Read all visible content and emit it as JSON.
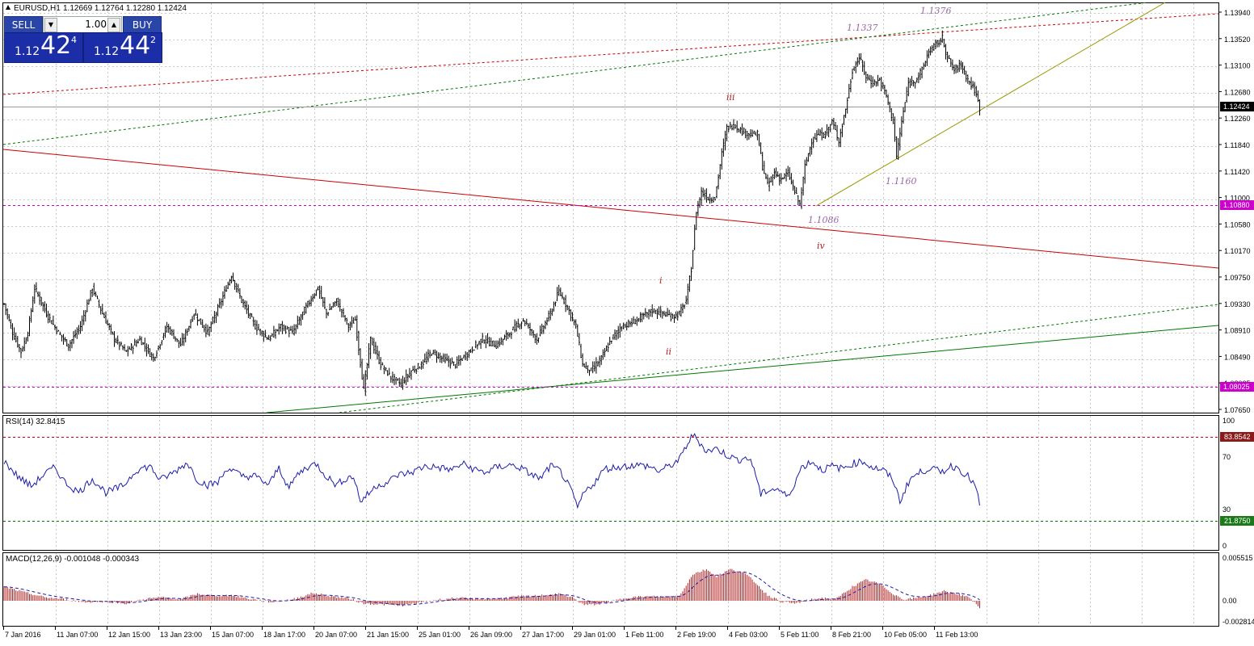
{
  "header": {
    "symbol": "EURUSD,H1",
    "ohlc": "1.12669 1.12764 1.12280 1.12424"
  },
  "trade_panel": {
    "sell_label": "SELL",
    "buy_label": "BUY",
    "volume": "1.00",
    "sell_prefix": "1.12",
    "sell_big": "42",
    "sell_sup": "4",
    "buy_prefix": "1.12",
    "buy_big": "44",
    "buy_sup": "2"
  },
  "colors": {
    "candle": "#000000",
    "rsi_line": "#1c1caa",
    "macd_hist": "#b22222",
    "macd_signal": "#1c1caa",
    "level_magenta": "#cc00cc",
    "trend_red": "#cc0000",
    "trend_green": "#007700",
    "trend_olive": "#999900",
    "wave_label": "#b22222",
    "price_label": "#9966aa",
    "grid": "#c0c0c0"
  },
  "price_axis": {
    "ticks": [
      "1.13940",
      "1.13520",
      "1.13100",
      "1.12680",
      "1.12260",
      "1.11840",
      "1.11420",
      "1.11000",
      "1.10580",
      "1.10170",
      "1.09750",
      "1.09330",
      "1.08910",
      "1.08490",
      "1.08025",
      "1.07650"
    ],
    "current_price": "1.12424",
    "levels": [
      "1.10880",
      "1.08025"
    ]
  },
  "time_axis": [
    "7 Jan 2016",
    "11 Jan 07:00",
    "12 Jan 15:00",
    "13 Jan 23:00",
    "15 Jan 07:00",
    "18 Jan 17:00",
    "20 Jan 07:00",
    "21 Jan 15:00",
    "25 Jan 01:00",
    "26 Jan 09:00",
    "27 Jan 17:00",
    "29 Jan 01:00",
    "1 Feb 11:00",
    "2 Feb 19:00",
    "4 Feb 03:00",
    "5 Feb 11:00",
    "8 Feb 21:00",
    "10 Feb 05:00",
    "11 Feb 13:00"
  ],
  "annotations": {
    "wave_labels": [
      "i",
      "ii",
      "iii",
      "iv"
    ],
    "price_labels": [
      "1.1337",
      "1.1376",
      "1.1160",
      "1.1086"
    ]
  },
  "rsi": {
    "title": "RSI(14) 32.8415",
    "ticks": [
      "100",
      "70",
      "30",
      "0"
    ],
    "upper_level": "83.8542",
    "lower_level": "21.8750"
  },
  "macd": {
    "title": "MACD(12,26,9) -0.001048 -0.000343",
    "ticks": [
      "0.005515",
      "0.00",
      "-0.002814"
    ]
  },
  "chart_data": {
    "type": "line",
    "title": "EURUSD,H1",
    "ylim": [
      1.0765,
      1.1405
    ],
    "anchors": [
      [
        0,
        1.0935
      ],
      [
        5,
        1.089
      ],
      [
        10,
        1.086
      ],
      [
        14,
        1.089
      ],
      [
        18,
        1.096
      ],
      [
        25,
        1.092
      ],
      [
        32,
        1.089
      ],
      [
        38,
        1.087
      ],
      [
        45,
        1.09
      ],
      [
        52,
        1.096
      ],
      [
        58,
        1.092
      ],
      [
        65,
        1.088
      ],
      [
        72,
        1.086
      ],
      [
        80,
        1.088
      ],
      [
        88,
        1.085
      ],
      [
        96,
        1.09
      ],
      [
        104,
        1.087
      ],
      [
        112,
        1.092
      ],
      [
        120,
        1.089
      ],
      [
        128,
        1.094
      ],
      [
        134,
        1.098
      ],
      [
        140,
        1.094
      ],
      [
        148,
        1.09
      ],
      [
        156,
        1.088
      ],
      [
        163,
        1.09
      ],
      [
        170,
        1.089
      ],
      [
        178,
        1.093
      ],
      [
        185,
        1.096
      ],
      [
        190,
        1.092
      ],
      [
        196,
        1.094
      ],
      [
        203,
        1.09
      ],
      [
        207,
        1.091
      ],
      [
        212,
        1.08
      ],
      [
        216,
        1.088
      ],
      [
        222,
        1.084
      ],
      [
        228,
        1.082
      ],
      [
        234,
        1.081
      ],
      [
        240,
        1.083
      ],
      [
        246,
        1.084
      ],
      [
        252,
        1.086
      ],
      [
        258,
        1.085
      ],
      [
        266,
        1.084
      ],
      [
        274,
        1.086
      ],
      [
        282,
        1.088
      ],
      [
        290,
        1.087
      ],
      [
        298,
        1.089
      ],
      [
        306,
        1.091
      ],
      [
        314,
        1.088
      ],
      [
        322,
        1.092
      ],
      [
        327,
        1.0955
      ],
      [
        332,
        1.093
      ],
      [
        337,
        1.09
      ],
      [
        341,
        1.084
      ],
      [
        346,
        1.083
      ],
      [
        352,
        1.085
      ],
      [
        358,
        1.088
      ],
      [
        364,
        1.09
      ],
      [
        370,
        1.0905
      ],
      [
        376,
        1.0915
      ],
      [
        382,
        1.0925
      ],
      [
        388,
        1.092
      ],
      [
        394,
        1.0915
      ],
      [
        398,
        1.092
      ],
      [
        402,
        1.094
      ],
      [
        405,
        1.099
      ],
      [
        408,
        1.108
      ],
      [
        411,
        1.111
      ],
      [
        415,
        1.11
      ],
      [
        419,
        1.11
      ],
      [
        423,
        1.117
      ],
      [
        426,
        1.121
      ],
      [
        430,
        1.1215
      ],
      [
        435,
        1.1205
      ],
      [
        440,
        1.12
      ],
      [
        444,
        1.12
      ],
      [
        447,
        1.115
      ],
      [
        450,
        1.112
      ],
      [
        454,
        1.114
      ],
      [
        458,
        1.113
      ],
      [
        462,
        1.114
      ],
      [
        466,
        1.111
      ],
      [
        469,
        1.109
      ],
      [
        472,
        1.115
      ],
      [
        476,
        1.119
      ],
      [
        480,
        1.12
      ],
      [
        484,
        1.12
      ],
      [
        488,
        1.122
      ],
      [
        492,
        1.119
      ],
      [
        496,
        1.124
      ],
      [
        500,
        1.13
      ],
      [
        504,
        1.132
      ],
      [
        508,
        1.129
      ],
      [
        512,
        1.128
      ],
      [
        516,
        1.1285
      ],
      [
        520,
        1.126
      ],
      [
        524,
        1.122
      ],
      [
        526,
        1.1165
      ],
      [
        529,
        1.122
      ],
      [
        533,
        1.128
      ],
      [
        537,
        1.1285
      ],
      [
        541,
        1.13
      ],
      [
        545,
        1.133
      ],
      [
        549,
        1.134
      ],
      [
        553,
        1.135
      ],
      [
        556,
        1.132
      ],
      [
        560,
        1.13
      ],
      [
        564,
        1.131
      ],
      [
        568,
        1.1285
      ],
      [
        572,
        1.127
      ],
      [
        575,
        1.1242
      ]
    ],
    "rsi_anchors": [
      [
        0,
        67
      ],
      [
        8,
        55
      ],
      [
        16,
        47
      ],
      [
        24,
        57
      ],
      [
        30,
        62
      ],
      [
        36,
        50
      ],
      [
        44,
        42
      ],
      [
        52,
        53
      ],
      [
        60,
        42
      ],
      [
        70,
        47
      ],
      [
        78,
        60
      ],
      [
        86,
        63
      ],
      [
        92,
        52
      ],
      [
        100,
        58
      ],
      [
        108,
        66
      ],
      [
        114,
        52
      ],
      [
        120,
        48
      ],
      [
        126,
        50
      ],
      [
        132,
        62
      ],
      [
        140,
        55
      ],
      [
        148,
        55
      ],
      [
        156,
        48
      ],
      [
        162,
        62
      ],
      [
        168,
        45
      ],
      [
        172,
        55
      ],
      [
        178,
        62
      ],
      [
        184,
        65
      ],
      [
        190,
        55
      ],
      [
        196,
        48
      ],
      [
        201,
        53
      ],
      [
        206,
        55
      ],
      [
        210,
        35
      ],
      [
        214,
        40
      ],
      [
        220,
        48
      ],
      [
        226,
        50
      ],
      [
        232,
        56
      ],
      [
        240,
        58
      ],
      [
        248,
        63
      ],
      [
        256,
        62
      ],
      [
        264,
        60
      ],
      [
        270,
        65
      ],
      [
        278,
        60
      ],
      [
        284,
        58
      ],
      [
        290,
        62
      ],
      [
        298,
        64
      ],
      [
        304,
        62
      ],
      [
        310,
        57
      ],
      [
        316,
        53
      ],
      [
        322,
        63
      ],
      [
        328,
        59
      ],
      [
        334,
        44
      ],
      [
        338,
        30
      ],
      [
        342,
        42
      ],
      [
        348,
        50
      ],
      [
        354,
        61
      ],
      [
        360,
        62
      ],
      [
        366,
        63
      ],
      [
        372,
        64
      ],
      [
        380,
        63
      ],
      [
        386,
        59
      ],
      [
        392,
        63
      ],
      [
        398,
        68
      ],
      [
        402,
        79
      ],
      [
        406,
        88
      ],
      [
        410,
        82
      ],
      [
        414,
        75
      ],
      [
        420,
        77
      ],
      [
        426,
        72
      ],
      [
        432,
        68
      ],
      [
        438,
        70
      ],
      [
        442,
        62
      ],
      [
        446,
        40
      ],
      [
        450,
        44
      ],
      [
        456,
        45
      ],
      [
        462,
        38
      ],
      [
        466,
        50
      ],
      [
        470,
        62
      ],
      [
        476,
        67
      ],
      [
        482,
        60
      ],
      [
        488,
        63
      ],
      [
        494,
        61
      ],
      [
        500,
        65
      ],
      [
        506,
        67
      ],
      [
        512,
        62
      ],
      [
        518,
        60
      ],
      [
        524,
        52
      ],
      [
        528,
        35
      ],
      [
        534,
        53
      ],
      [
        540,
        58
      ],
      [
        546,
        62
      ],
      [
        552,
        58
      ],
      [
        558,
        63
      ],
      [
        562,
        62
      ],
      [
        568,
        55
      ],
      [
        572,
        48
      ],
      [
        575,
        33
      ]
    ],
    "macd_anchors": [
      [
        0,
        0.002
      ],
      [
        12,
        0.0012
      ],
      [
        24,
        0.0005
      ],
      [
        36,
        0.0002
      ],
      [
        48,
        -0.0002
      ],
      [
        60,
        -0.0001
      ],
      [
        72,
        -0.0004
      ],
      [
        84,
        0.0003
      ],
      [
        94,
        0.0005
      ],
      [
        104,
        0.0002
      ],
      [
        114,
        0.001
      ],
      [
        124,
        0.0007
      ],
      [
        134,
        0.0008
      ],
      [
        144,
        0.0003
      ],
      [
        158,
        -0.0002
      ],
      [
        170,
        0.0002
      ],
      [
        182,
        0.0011
      ],
      [
        194,
        0.0006
      ],
      [
        204,
        0.0003
      ],
      [
        212,
        -0.0004
      ],
      [
        222,
        -0.0005
      ],
      [
        234,
        -0.0007
      ],
      [
        244,
        -0.0003
      ],
      [
        254,
        0.0001
      ],
      [
        266,
        0.0004
      ],
      [
        278,
        0.0003
      ],
      [
        290,
        0.0003
      ],
      [
        302,
        0.0006
      ],
      [
        314,
        0.0007
      ],
      [
        326,
        0.001
      ],
      [
        334,
        0.0006
      ],
      [
        342,
        -0.0006
      ],
      [
        350,
        -0.0005
      ],
      [
        358,
        -0.0001
      ],
      [
        368,
        0.0005
      ],
      [
        378,
        0.0006
      ],
      [
        390,
        0.0006
      ],
      [
        398,
        0.0007
      ],
      [
        406,
        0.0038
      ],
      [
        414,
        0.0045
      ],
      [
        420,
        0.0035
      ],
      [
        428,
        0.0045
      ],
      [
        436,
        0.004
      ],
      [
        442,
        0.0028
      ],
      [
        450,
        0.0008
      ],
      [
        458,
        -0.0001
      ],
      [
        466,
        -0.0004
      ],
      [
        474,
        0.0001
      ],
      [
        482,
        0.0004
      ],
      [
        490,
        0.0002
      ],
      [
        500,
        0.002
      ],
      [
        508,
        0.003
      ],
      [
        516,
        0.0024
      ],
      [
        524,
        0.001
      ],
      [
        530,
        0.0002
      ],
      [
        538,
        0.0004
      ],
      [
        546,
        0.0008
      ],
      [
        554,
        0.0014
      ],
      [
        562,
        0.001
      ],
      [
        570,
        0.0003
      ],
      [
        575,
        -0.001
      ]
    ]
  }
}
